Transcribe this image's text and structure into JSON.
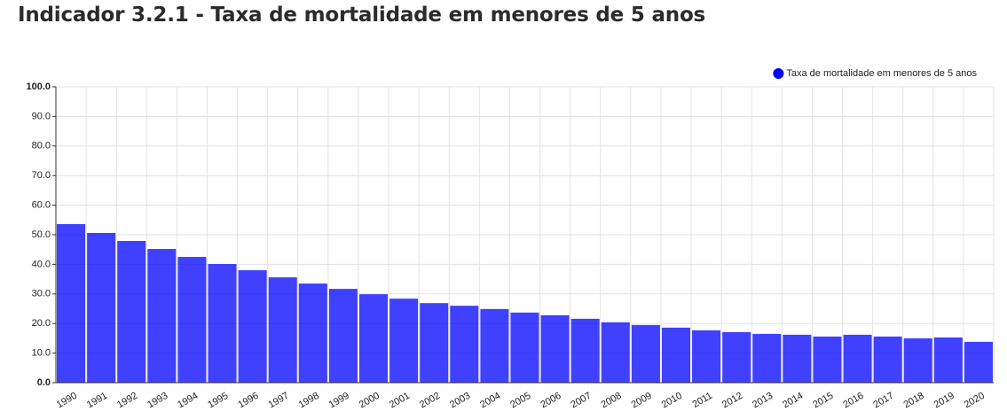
{
  "chart_data": {
    "type": "bar",
    "title": "Indicador 3.2.1 - Taxa de mortalidade em menores de 5 anos",
    "categories": [
      "1990",
      "1991",
      "1992",
      "1993",
      "1994",
      "1995",
      "1996",
      "1997",
      "1998",
      "1999",
      "2000",
      "2001",
      "2002",
      "2003",
      "2004",
      "2005",
      "2006",
      "2007",
      "2008",
      "2009",
      "2010",
      "2011",
      "2012",
      "2013",
      "2014",
      "2015",
      "2016",
      "2017",
      "2018",
      "2019",
      "2020"
    ],
    "series": [
      {
        "name": "Taxa de mortalidade em menores de 5 anos",
        "color": "#0000ff",
        "values": [
          53.6,
          50.6,
          47.9,
          45.2,
          42.5,
          40.1,
          38.0,
          35.6,
          33.5,
          31.7,
          29.9,
          28.4,
          26.9,
          26.0,
          24.9,
          23.7,
          22.8,
          21.6,
          20.4,
          19.5,
          18.6,
          17.7,
          17.1,
          16.5,
          16.2,
          15.6,
          16.2,
          15.6,
          15.0,
          15.3,
          13.8
        ]
      }
    ],
    "ylim": [
      0,
      100
    ],
    "yticks": [
      {
        "value": 0,
        "label": "0.0"
      },
      {
        "value": 10,
        "label": "10.0"
      },
      {
        "value": 20,
        "label": "20.0"
      },
      {
        "value": 30,
        "label": "30.0"
      },
      {
        "value": 40,
        "label": "40.0"
      },
      {
        "value": 50,
        "label": "50.0"
      },
      {
        "value": 60,
        "label": "60.0"
      },
      {
        "value": 70,
        "label": "70.0"
      },
      {
        "value": 80,
        "label": "80.0"
      },
      {
        "value": 90,
        "label": "90.0"
      },
      {
        "value": 100,
        "label": "100.0"
      }
    ],
    "grid": true,
    "legend": "top-right"
  }
}
